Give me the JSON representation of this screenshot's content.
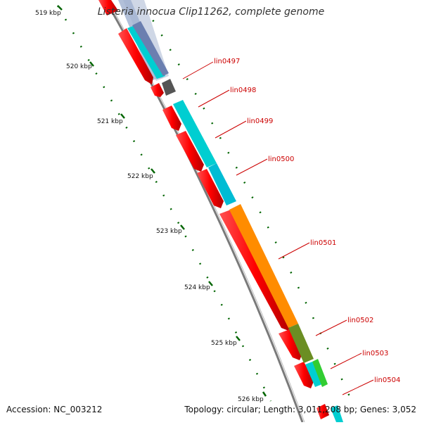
{
  "title": "Listeria innocua Clip11262, complete genome",
  "footer": {
    "accession": "Accession: NC_003212",
    "summary": "Topology: circular; Length: 3,011,208 bp; Genes: 3,052"
  },
  "ruler": {
    "ticks": [
      "519 kbp",
      "520 kbp",
      "521 kbp",
      "522 kbp",
      "523 kbp",
      "524 kbp",
      "525 kbp",
      "526 kbp"
    ]
  },
  "genes": [
    {
      "label": "lin0497",
      "color": "#d9d9d9"
    },
    {
      "label": "lin0498",
      "color": "#00ced1"
    },
    {
      "label": "lin0499",
      "color": "#00ced1"
    },
    {
      "label": "lin0500",
      "color": "#00ced1"
    },
    {
      "label": "lin0501",
      "color": "#ff8c00"
    },
    {
      "label": "lin0502",
      "color": "#6b8e23"
    },
    {
      "label": "lin0503",
      "color": "#00ced1"
    },
    {
      "label": "lin0504",
      "color": "#32cd32"
    }
  ],
  "colors": {
    "cds": "#ff0000",
    "axis": "#808080",
    "ticks": "#006400",
    "label": "#cc0000"
  }
}
